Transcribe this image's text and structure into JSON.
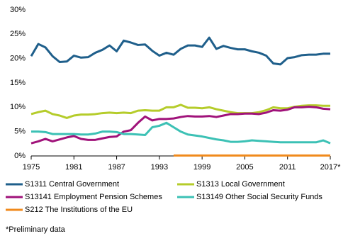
{
  "chart_data": {
    "type": "line",
    "x": [
      1975,
      1976,
      1977,
      1978,
      1979,
      1980,
      1981,
      1982,
      1983,
      1984,
      1985,
      1986,
      1987,
      1988,
      1989,
      1990,
      1991,
      1992,
      1993,
      1994,
      1995,
      1996,
      1997,
      1998,
      1999,
      2000,
      2001,
      2002,
      2003,
      2004,
      2005,
      2006,
      2007,
      2008,
      2009,
      2010,
      2011,
      2012,
      2013,
      2014,
      2015,
      2016,
      2017
    ],
    "xlim": [
      1975,
      2017
    ],
    "xticks": [
      1975,
      1981,
      1987,
      1993,
      1999,
      2005,
      2011,
      {
        "value": 2017,
        "label": "2017*"
      }
    ],
    "ylim": [
      0,
      30
    ],
    "yticks": [
      {
        "value": 0,
        "label": "0%"
      },
      {
        "value": 5,
        "label": "5%"
      },
      {
        "value": 10,
        "label": "10%"
      },
      {
        "value": 15,
        "label": "15%"
      },
      {
        "value": 20,
        "label": "20%"
      },
      {
        "value": 25,
        "label": "25%"
      },
      {
        "value": 30,
        "label": "30%"
      }
    ],
    "series": [
      {
        "name": "S1311 Central Government",
        "color": "#1f5f8b",
        "values": [
          20.5,
          23,
          22.3,
          20.5,
          19.3,
          19.4,
          20.6,
          20.2,
          20.3,
          21.2,
          21.8,
          22.7,
          21.5,
          23.7,
          23.3,
          22.8,
          22.9,
          21.6,
          20.6,
          21.2,
          20.8,
          22.0,
          22.7,
          22.7,
          22.4,
          24.3,
          22.0,
          22.6,
          22.2,
          21.9,
          21.9,
          21.5,
          21.2,
          20.6,
          19.0,
          18.8,
          20.1,
          20.3,
          20.7,
          20.8,
          20.8,
          21.0,
          21.0
        ]
      },
      {
        "name": "S1313 Local Government",
        "color": "#b5cc2a",
        "values": [
          8.6,
          9.0,
          9.3,
          8.6,
          8.3,
          7.8,
          8.3,
          8.5,
          8.5,
          8.6,
          8.8,
          8.9,
          8.8,
          8.9,
          8.8,
          9.3,
          9.4,
          9.3,
          9.3,
          10.0,
          10.0,
          10.5,
          9.9,
          9.9,
          9.8,
          10.0,
          9.6,
          9.3,
          9.0,
          8.8,
          8.8,
          8.8,
          9.0,
          9.4,
          10.0,
          9.8,
          9.8,
          10.1,
          10.3,
          10.4,
          10.4,
          10.3,
          10.3
        ]
      },
      {
        "name": "S13141 Employment Pension Schemes",
        "color": "#a0127a",
        "values": [
          2.6,
          3.0,
          3.5,
          3.0,
          3.4,
          3.8,
          4.1,
          3.5,
          3.3,
          3.3,
          3.6,
          3.9,
          4.0,
          5.0,
          5.3,
          6.8,
          8.1,
          7.3,
          7.6,
          7.6,
          7.7,
          8.0,
          8.2,
          8.1,
          8.1,
          8.2,
          8.0,
          8.3,
          8.6,
          8.6,
          8.7,
          8.7,
          8.6,
          8.9,
          9.4,
          9.3,
          9.5,
          10.0,
          10.0,
          10.1,
          10.0,
          9.7,
          9.6
        ]
      },
      {
        "name": "S13149 Other Social Security Funds",
        "color": "#3cc1b5",
        "values": [
          5.0,
          5.0,
          4.9,
          4.5,
          4.5,
          4.5,
          4.5,
          4.4,
          4.4,
          4.6,
          5.0,
          5.0,
          4.9,
          4.5,
          4.5,
          4.4,
          4.3,
          5.9,
          6.2,
          6.8,
          5.9,
          5.0,
          4.4,
          4.2,
          4.0,
          3.7,
          3.4,
          3.2,
          2.9,
          2.9,
          3.0,
          3.2,
          3.1,
          3.0,
          2.9,
          2.8,
          2.8,
          2.8,
          2.8,
          2.8,
          2.8,
          3.2,
          2.6
        ]
      },
      {
        "name": "S212 The Institutions of the EU",
        "color": "#f08a1c",
        "values": [
          null,
          null,
          null,
          null,
          null,
          null,
          null,
          null,
          null,
          null,
          null,
          null,
          null,
          null,
          null,
          null,
          null,
          null,
          null,
          null,
          0.1,
          0.1,
          0.1,
          0.1,
          0.1,
          0.1,
          0.1,
          0.1,
          0.1,
          0.1,
          0.1,
          0.1,
          0.1,
          0.1,
          0.1,
          0.1,
          0.1,
          0.1,
          0.1,
          0.1,
          0.1,
          0.1,
          0.1
        ]
      }
    ],
    "note": "*Preliminary data"
  }
}
